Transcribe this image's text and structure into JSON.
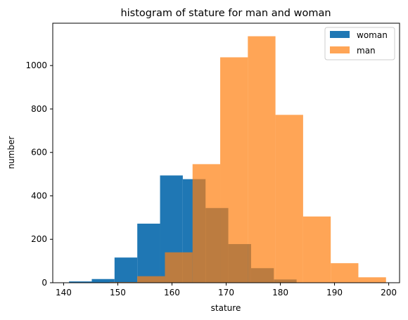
{
  "chart_data": {
    "type": "histogram",
    "title": "histogram of stature for man and woman",
    "xlabel": "stature",
    "ylabel": "number",
    "xlim": [
      138.0,
      202.0
    ],
    "ylim": [
      0,
      1195
    ],
    "x_ticks": [
      140,
      150,
      160,
      170,
      180,
      190,
      200
    ],
    "y_ticks": [
      0,
      200,
      400,
      600,
      800,
      1000
    ],
    "grid": false,
    "legend_position": "top-right",
    "series": [
      {
        "name": "woman",
        "color": "#1f77b4",
        "alpha": 1.0,
        "bin_edges": [
          141.0,
          145.2,
          149.4,
          153.6,
          157.8,
          162.0,
          166.2,
          170.4,
          174.6,
          178.8,
          183.0
        ],
        "counts": [
          6,
          17,
          116,
          272,
          494,
          477,
          344,
          178,
          67,
          15
        ]
      },
      {
        "name": "man",
        "color": "#ff7f0e",
        "alpha": 0.7,
        "bin_edges": [
          148.5,
          153.6,
          158.7,
          163.8,
          168.9,
          174.0,
          179.1,
          184.2,
          189.3,
          194.4,
          199.5
        ],
        "counts": [
          3,
          30,
          140,
          546,
          1038,
          1135,
          773,
          305,
          90,
          25
        ]
      }
    ]
  }
}
